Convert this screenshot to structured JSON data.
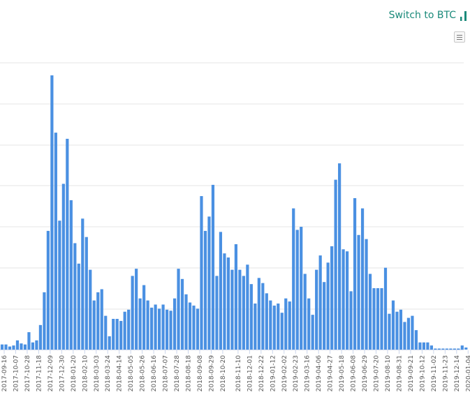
{
  "toolbar": {
    "switch_label": "Switch to BTC",
    "switch_icon": "bar-chart-icon",
    "menu_icon": "hamburger-menu-icon"
  },
  "chart_data": {
    "type": "bar",
    "color": "#4a90e2",
    "grid": true,
    "y_axis_labels_shown": false,
    "ylim": [
      0,
      13.4
    ],
    "tick_labels": [
      "2017-09-16",
      "2017-10-07",
      "2017-10-28",
      "2017-11-18",
      "2017-12-09",
      "2017-12-30",
      "2018-01-20",
      "2018-02-10",
      "2018-03-03",
      "2018-03-24",
      "2018-04-14",
      "2018-05-05",
      "2018-05-26",
      "2018-06-16",
      "2018-07-07",
      "2018-07-28",
      "2018-08-18",
      "2018-09-08",
      "2018-09-29",
      "2018-10-20",
      "2018-11-10",
      "2018-12-01",
      "2018-12-22",
      "2019-01-12",
      "2019-02-02",
      "2019-02-23",
      "2019-03-16",
      "2019-04-06",
      "2019-04-27",
      "2019-05-18",
      "2019-06-08",
      "2019-06-29",
      "2019-07-20",
      "2019-08-10",
      "2019-08-31",
      "2019-09-21",
      "2019-10-12",
      "2019-11-02",
      "2019-11-23",
      "2019-12-14",
      "2020-01-04"
    ],
    "values": [
      0.25,
      0.25,
      0.15,
      0.2,
      0.45,
      0.3,
      0.25,
      0.85,
      0.35,
      0.45,
      1.2,
      2.8,
      5.8,
      13.4,
      10.6,
      6.3,
      8.1,
      10.3,
      7.3,
      5.2,
      4.2,
      6.4,
      5.5,
      3.9,
      2.4,
      2.8,
      2.95,
      1.65,
      0.65,
      1.5,
      1.5,
      1.4,
      1.85,
      1.95,
      3.6,
      3.95,
      2.5,
      3.15,
      2.4,
      2.05,
      2.2,
      2.0,
      2.2,
      1.95,
      1.9,
      2.5,
      3.95,
      3.45,
      2.7,
      2.3,
      2.15,
      2.0,
      7.5,
      5.8,
      6.5,
      8.05,
      3.6,
      5.75,
      4.7,
      4.5,
      3.9,
      5.15,
      3.9,
      3.6,
      4.15,
      3.2,
      2.25,
      3.5,
      3.25,
      2.75,
      2.4,
      2.15,
      2.25,
      1.8,
      2.5,
      2.35,
      6.9,
      5.85,
      6.0,
      3.7,
      2.5,
      1.7,
      3.9,
      4.6,
      3.3,
      4.25,
      5.05,
      8.3,
      9.1,
      4.9,
      4.8,
      2.85,
      7.4,
      5.6,
      6.9,
      5.4,
      3.7,
      3.0,
      3.0,
      3.0,
      4.0,
      1.75,
      2.4,
      1.85,
      1.95,
      1.35,
      1.55,
      1.65,
      0.95,
      0.35,
      0.35,
      0.35,
      0.2,
      0.05,
      0.05,
      0.05,
      0.05,
      0.05,
      0.05,
      0.05,
      0.2,
      0.1
    ]
  }
}
